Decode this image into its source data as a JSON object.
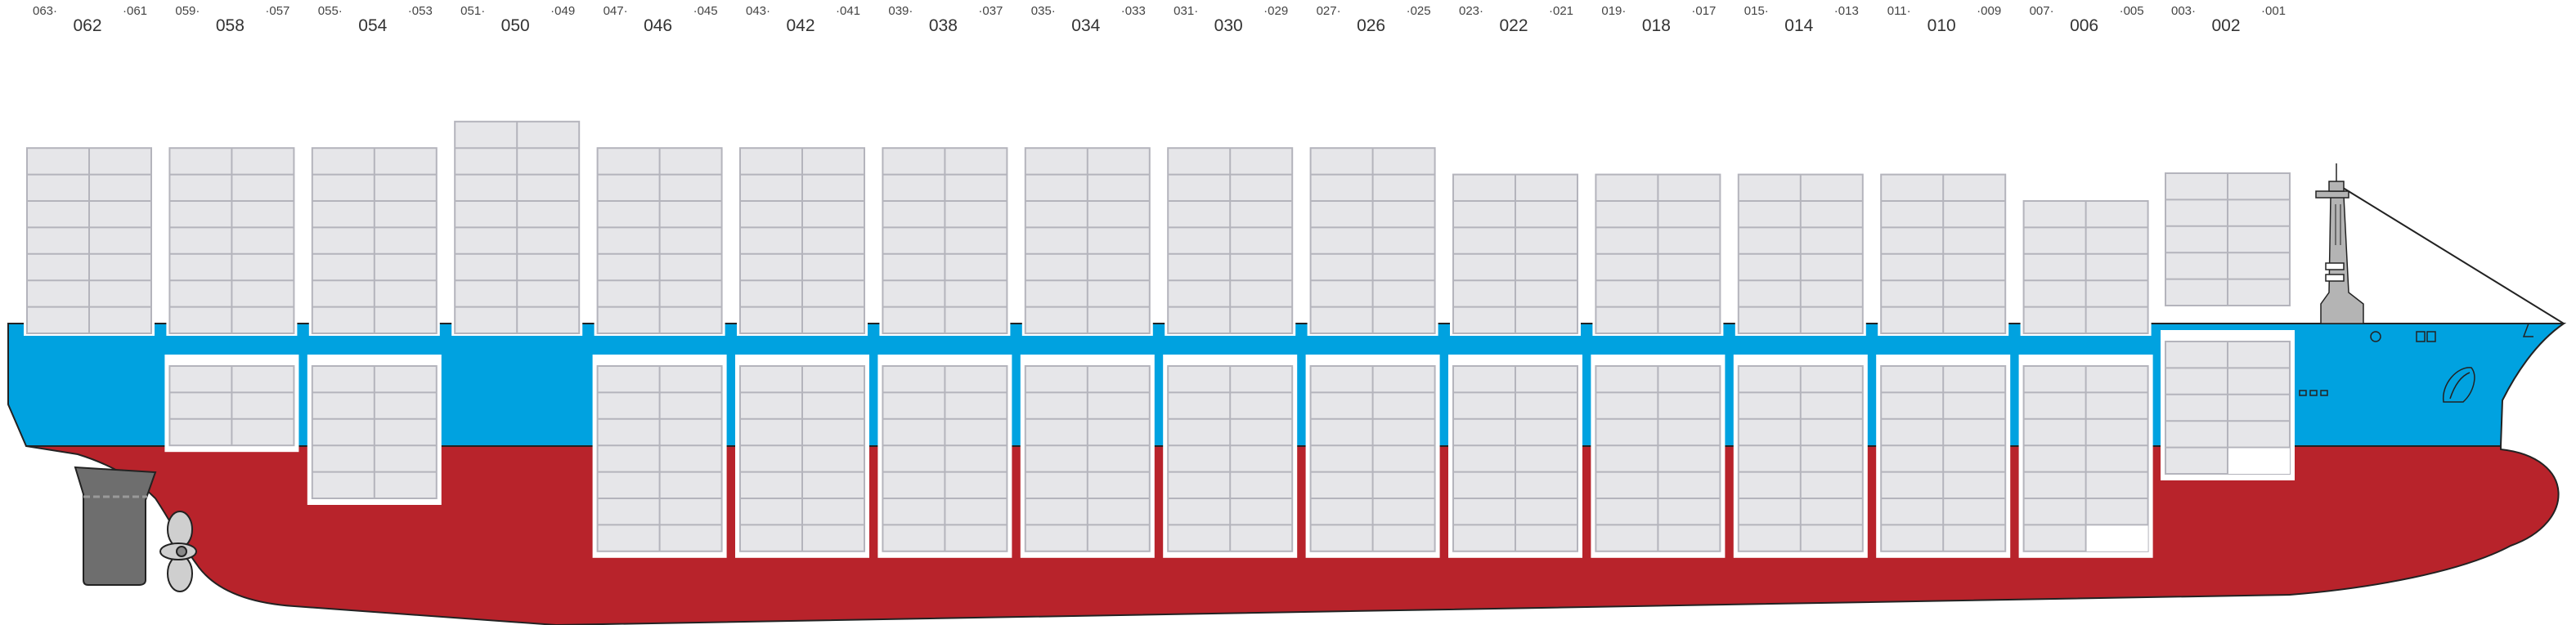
{
  "colors": {
    "hull_lower": "#b8232b",
    "hull_upper": "#00a2e0",
    "container_fill": "#e6e6e9",
    "container_stroke": "#b4b4bc",
    "outline": "#222222",
    "superstructure": "#b4b4b4",
    "rudder": "#6e6e6e",
    "propeller": "#cfcfcf"
  },
  "bays": [
    {
      "label": "062",
      "fwd": "063",
      "aft": "061",
      "deck_tiers": 7,
      "deck_top": "low",
      "hold_tiers": 0
    },
    {
      "label": "058",
      "fwd": "059",
      "aft": "057",
      "deck_tiers": 7,
      "deck_top": "low",
      "hold_tiers": 3
    },
    {
      "label": "054",
      "fwd": "055",
      "aft": "053",
      "deck_tiers": 7,
      "deck_top": "low",
      "hold_tiers": 5
    },
    {
      "label": "050",
      "fwd": "051",
      "aft": "049",
      "deck_tiers": 8,
      "deck_top": "high",
      "hold_tiers": 0
    },
    {
      "label": "046",
      "fwd": "047",
      "aft": "045",
      "deck_tiers": 7,
      "deck_top": "low",
      "hold_tiers": 7
    },
    {
      "label": "042",
      "fwd": "043",
      "aft": "041",
      "deck_tiers": 7,
      "deck_top": "low",
      "hold_tiers": 7
    },
    {
      "label": "038",
      "fwd": "039",
      "aft": "037",
      "deck_tiers": 7,
      "deck_top": "low",
      "hold_tiers": 7
    },
    {
      "label": "034",
      "fwd": "035",
      "aft": "033",
      "deck_tiers": 7,
      "deck_top": "low",
      "hold_tiers": 7
    },
    {
      "label": "030",
      "fwd": "031",
      "aft": "029",
      "deck_tiers": 7,
      "deck_top": "low",
      "hold_tiers": 7
    },
    {
      "label": "026",
      "fwd": "027",
      "aft": "025",
      "deck_tiers": 7,
      "deck_top": "low",
      "hold_tiers": 7
    },
    {
      "label": "022",
      "fwd": "023",
      "aft": "021",
      "deck_tiers": 6,
      "deck_top": "low",
      "hold_tiers": 7
    },
    {
      "label": "018",
      "fwd": "019",
      "aft": "017",
      "deck_tiers": 6,
      "deck_top": "low",
      "hold_tiers": 7
    },
    {
      "label": "014",
      "fwd": "015",
      "aft": "013",
      "deck_tiers": 6,
      "deck_top": "low",
      "hold_tiers": 7
    },
    {
      "label": "010",
      "fwd": "011",
      "aft": "009",
      "deck_tiers": 6,
      "deck_top": "low",
      "hold_tiers": 7
    },
    {
      "label": "006",
      "fwd": "007",
      "aft": "005",
      "deck_tiers": 5,
      "deck_top": "low",
      "hold_tiers": 7
    },
    {
      "label": "002",
      "fwd": "003",
      "aft": "001",
      "deck_tiers": 5,
      "deck_top": "low",
      "hold_tiers": 5
    }
  ]
}
